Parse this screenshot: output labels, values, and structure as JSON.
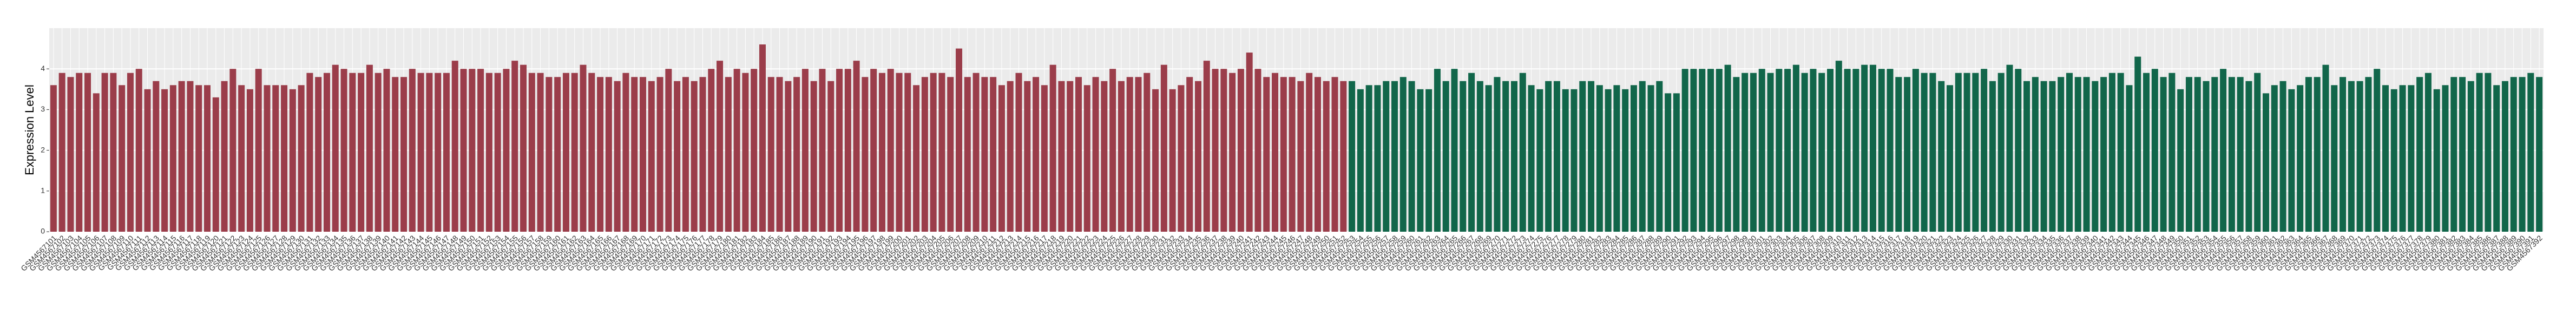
{
  "chart_data": {
    "type": "bar",
    "y_label": "Expression Level",
    "categories": [
      "GSM4567101",
      "GSM4567102",
      "GSM4567103",
      "GSM4567104",
      "GSM4567105",
      "GSM4567106",
      "GSM4567107",
      "GSM4567108",
      "GSM4567109",
      "GSM4567110",
      "GSM4567111",
      "GSM4567112",
      "GSM4567113",
      "GSM4567114",
      "GSM4567115",
      "GSM4567116",
      "GSM4567117",
      "GSM4567118",
      "GSM4567119",
      "GSM4567120",
      "GSM4567121",
      "GSM4567122",
      "GSM4567123",
      "GSM4567124",
      "GSM4567125",
      "GSM4567126",
      "GSM4567127",
      "GSM4567128",
      "GSM4567129",
      "GSM4567130",
      "GSM4567131",
      "GSM4567132",
      "GSM4567133",
      "GSM4567134",
      "GSM4567135",
      "GSM4567136",
      "GSM4567137",
      "GSM4567138",
      "GSM4567139",
      "GSM4567140",
      "GSM4567141",
      "GSM4567142",
      "GSM4567143",
      "GSM4567144",
      "GSM4567145",
      "GSM4567146",
      "GSM4567147",
      "GSM4567148",
      "GSM4567149",
      "GSM4567150",
      "GSM4567151",
      "GSM4567152",
      "GSM4567153",
      "GSM4567154",
      "GSM4567155",
      "GSM4567156",
      "GSM4567157",
      "GSM4567158",
      "GSM4567159",
      "GSM4567160",
      "GSM4567161",
      "GSM4567162",
      "GSM4567163",
      "GSM4567164",
      "GSM4567165",
      "GSM4567166",
      "GSM4567167",
      "GSM4567168",
      "GSM4567169",
      "GSM4567170",
      "GSM4567171",
      "GSM4567172",
      "GSM4567173",
      "GSM4567174",
      "GSM4567175",
      "GSM4567176",
      "GSM4567177",
      "GSM4567178",
      "GSM4567179",
      "GSM4567180",
      "GSM4567181",
      "GSM4567182",
      "GSM4567183",
      "GSM4567184",
      "GSM4567185",
      "GSM4567186",
      "GSM4567187",
      "GSM4567188",
      "GSM4567189",
      "GSM4567190",
      "GSM4567191",
      "GSM4567192",
      "GSM4567193",
      "GSM4567194",
      "GSM4567195",
      "GSM4567196",
      "GSM4567197",
      "GSM4567198",
      "GSM4567199",
      "GSM4567200",
      "GSM4567201",
      "GSM4567202",
      "GSM4567203",
      "GSM4567204",
      "GSM4567205",
      "GSM4567206",
      "GSM4567207",
      "GSM4567208",
      "GSM4567209",
      "GSM4567210",
      "GSM4567211",
      "GSM4567212",
      "GSM4567213",
      "GSM4567214",
      "GSM4567215",
      "GSM4567216",
      "GSM4567217",
      "GSM4567218",
      "GSM4567219",
      "GSM4567220",
      "GSM4567221",
      "GSM4567222",
      "GSM4567223",
      "GSM4567224",
      "GSM4567225",
      "GSM4567226",
      "GSM4567227",
      "GSM4567228",
      "GSM4567229",
      "GSM4567230",
      "GSM4567231",
      "GSM4567232",
      "GSM4567233",
      "GSM4567234",
      "GSM4567235",
      "GSM4567236",
      "GSM4567237",
      "GSM4567238",
      "GSM4567239",
      "GSM4567240",
      "GSM4567241",
      "GSM4567242",
      "GSM4567243",
      "GSM4567244",
      "GSM4567245",
      "GSM4567246",
      "GSM4567247",
      "GSM4567248",
      "GSM4567249",
      "GSM4567250",
      "GSM4567251",
      "GSM4567252",
      "GSM4567253",
      "GSM4567254",
      "GSM4567255",
      "GSM4567256",
      "GSM4567257",
      "GSM4567258",
      "GSM4567259",
      "GSM4567260",
      "GSM4567261",
      "GSM4567262",
      "GSM4567263",
      "GSM4567264",
      "GSM4567265",
      "GSM4567266",
      "GSM4567267",
      "GSM4567268",
      "GSM4567269",
      "GSM4567270",
      "GSM4567271",
      "GSM4567272",
      "GSM4567273",
      "GSM4567274",
      "GSM4567275",
      "GSM4567276",
      "GSM4567277",
      "GSM4567278",
      "GSM4567279",
      "GSM4567280",
      "GSM4567281",
      "GSM4567282",
      "GSM4567283",
      "GSM4567284",
      "GSM4567285",
      "GSM4567286",
      "GSM4567287",
      "GSM4567288",
      "GSM4567289",
      "GSM4567290",
      "GSM4567291",
      "GSM4567292",
      "GSM4567293",
      "GSM4567294",
      "GSM4567295",
      "GSM4567296",
      "GSM4567297",
      "GSM4567298",
      "GSM4567299",
      "GSM4567300",
      "GSM4567301",
      "GSM4567302",
      "GSM4567303",
      "GSM4567304",
      "GSM4567305",
      "GSM4567306",
      "GSM4567307",
      "GSM4567308",
      "GSM4567309",
      "GSM4567310",
      "GSM4567311",
      "GSM4567312",
      "GSM4567313",
      "GSM4567314",
      "GSM4567315",
      "GSM4567316",
      "GSM4567317",
      "GSM4567318",
      "GSM4567319",
      "GSM4567320",
      "GSM4567321",
      "GSM4567322",
      "GSM4567323",
      "GSM4567324",
      "GSM4567325",
      "GSM4567326",
      "GSM4567327",
      "GSM4567328",
      "GSM4567329",
      "GSM4567330",
      "GSM4567331",
      "GSM4567332",
      "GSM4567333",
      "GSM4567334",
      "GSM4567335",
      "GSM4567336",
      "GSM4567337",
      "GSM4567338",
      "GSM4567339",
      "GSM4567340",
      "GSM4567341",
      "GSM4567342",
      "GSM4567343",
      "GSM4567344",
      "GSM4567345",
      "GSM4567346",
      "GSM4567347",
      "GSM4567348",
      "GSM4567349",
      "GSM4567350",
      "GSM4567351",
      "GSM4567352",
      "GSM4567353",
      "GSM4567354",
      "GSM4567355",
      "GSM4567356",
      "GSM4567357",
      "GSM4567358",
      "GSM4567359",
      "GSM4567360",
      "GSM4567361",
      "GSM4567362",
      "GSM4567363",
      "GSM4567364",
      "GSM4567365",
      "GSM4567366",
      "GSM4567367",
      "GSM4567368",
      "GSM4567369",
      "GSM4567370",
      "GSM4567371",
      "GSM4567372",
      "GSM4567373",
      "GSM4567374",
      "GSM4567375",
      "GSM4567376",
      "GSM4567377",
      "GSM4567378",
      "GSM4567379",
      "GSM4567380",
      "GSM4567381",
      "GSM4567382",
      "GSM4567383",
      "GSM4567384",
      "GSM4567385",
      "GSM4567386",
      "GSM4567387",
      "GSM4567388",
      "GSM4567389",
      "GSM4567390",
      "GSM4567391",
      "GSM4567392"
    ],
    "values": [
      3.6,
      3.9,
      3.8,
      3.9,
      3.9,
      3.4,
      3.9,
      3.9,
      3.6,
      3.9,
      4.0,
      3.5,
      3.7,
      3.5,
      3.6,
      3.7,
      3.7,
      3.6,
      3.6,
      3.3,
      3.7,
      4.0,
      3.6,
      3.5,
      4.0,
      3.6,
      3.6,
      3.6,
      3.5,
      3.6,
      3.9,
      3.8,
      3.9,
      4.1,
      4.0,
      3.9,
      3.9,
      4.1,
      3.9,
      4.0,
      3.8,
      3.8,
      4.0,
      3.9,
      3.9,
      3.9,
      3.9,
      4.2,
      4.0,
      4.0,
      4.0,
      3.9,
      3.9,
      4.0,
      4.2,
      4.1,
      3.9,
      3.9,
      3.8,
      3.8,
      3.9,
      3.9,
      4.1,
      3.9,
      3.8,
      3.8,
      3.7,
      3.9,
      3.8,
      3.8,
      3.7,
      3.8,
      4.0,
      3.7,
      3.8,
      3.7,
      3.8,
      4.0,
      4.2,
      3.8,
      4.0,
      3.9,
      4.0,
      4.6,
      3.8,
      3.8,
      3.7,
      3.8,
      4.0,
      3.7,
      4.0,
      3.7,
      4.0,
      4.0,
      4.2,
      3.8,
      4.0,
      3.9,
      4.0,
      3.9,
      3.9,
      3.6,
      3.8,
      3.9,
      3.9,
      3.8,
      4.5,
      3.8,
      3.9,
      3.8,
      3.8,
      3.6,
      3.7,
      3.9,
      3.7,
      3.8,
      3.6,
      4.1,
      3.7,
      3.7,
      3.8,
      3.6,
      3.8,
      3.7,
      4.0,
      3.7,
      3.8,
      3.8,
      3.9,
      3.5,
      4.1,
      3.5,
      3.6,
      3.8,
      3.7,
      4.2,
      4.0,
      4.0,
      3.9,
      4.0,
      4.4,
      4.0,
      3.8,
      3.9,
      3.8,
      3.8,
      3.7,
      3.9,
      3.8,
      3.7,
      3.8,
      3.7,
      3.7,
      3.5,
      3.6,
      3.6,
      3.7,
      3.7,
      3.8,
      3.7,
      3.5,
      3.5,
      4.0,
      3.7,
      4.0,
      3.7,
      3.9,
      3.7,
      3.6,
      3.8,
      3.7,
      3.7,
      3.9,
      3.6,
      3.5,
      3.7,
      3.7,
      3.5,
      3.5,
      3.7,
      3.7,
      3.6,
      3.5,
      3.6,
      3.5,
      3.6,
      3.7,
      3.6,
      3.7,
      3.4,
      3.4,
      4.0,
      4.0,
      4.0,
      4.0,
      4.0,
      4.1,
      3.8,
      3.9,
      3.9,
      4.0,
      3.9,
      4.0,
      4.0,
      4.1,
      3.9,
      4.0,
      3.9,
      4.0,
      4.2,
      4.0,
      4.0,
      4.1,
      4.1,
      4.0,
      4.0,
      3.8,
      3.8,
      4.0,
      3.9,
      3.9,
      3.7,
      3.6,
      3.9,
      3.9,
      3.9,
      4.0,
      3.7,
      3.9,
      4.1,
      4.0,
      3.7,
      3.8,
      3.7,
      3.7,
      3.8,
      3.9,
      3.8,
      3.8,
      3.7,
      3.8,
      3.9,
      3.9,
      3.6,
      4.3,
      3.9,
      4.0,
      3.8,
      3.9,
      3.5,
      3.8,
      3.8,
      3.7,
      3.8,
      4.0,
      3.8,
      3.8,
      3.7,
      3.9,
      3.4,
      3.6,
      3.7,
      3.5,
      3.6,
      3.8,
      3.8,
      4.1,
      3.6,
      3.8,
      3.7,
      3.7,
      3.8,
      4.0,
      3.6,
      3.5,
      3.6,
      3.6,
      3.8,
      3.9,
      3.5,
      3.6,
      3.8,
      3.8,
      3.7,
      3.9,
      3.9,
      3.6,
      3.7,
      3.8,
      3.8,
      3.9,
      3.8
    ],
    "colors": [
      "#9b3d4a",
      "#9b3d4a",
      "#9b3d4a",
      "#9b3d4a",
      "#9b3d4a",
      "#9b3d4a",
      "#9b3d4a",
      "#9b3d4a",
      "#9b3d4a",
      "#9b3d4a",
      "#9b3d4a",
      "#9b3d4a",
      "#9b3d4a",
      "#9b3d4a",
      "#9b3d4a",
      "#9b3d4a",
      "#9b3d4a",
      "#9b3d4a",
      "#9b3d4a",
      "#9b3d4a",
      "#9b3d4a",
      "#9b3d4a",
      "#9b3d4a",
      "#9b3d4a",
      "#9b3d4a",
      "#9b3d4a",
      "#9b3d4a",
      "#9b3d4a",
      "#9b3d4a",
      "#9b3d4a",
      "#9b3d4a",
      "#9b3d4a",
      "#9b3d4a",
      "#9b3d4a",
      "#9b3d4a",
      "#9b3d4a",
      "#9b3d4a",
      "#9b3d4a",
      "#9b3d4a",
      "#9b3d4a",
      "#9b3d4a",
      "#9b3d4a",
      "#9b3d4a",
      "#9b3d4a",
      "#9b3d4a",
      "#9b3d4a",
      "#9b3d4a",
      "#9b3d4a",
      "#9b3d4a",
      "#9b3d4a",
      "#9b3d4a",
      "#9b3d4a",
      "#9b3d4a",
      "#9b3d4a",
      "#9b3d4a",
      "#9b3d4a",
      "#9b3d4a",
      "#9b3d4a",
      "#9b3d4a",
      "#9b3d4a",
      "#9b3d4a",
      "#9b3d4a",
      "#9b3d4a",
      "#9b3d4a",
      "#9b3d4a",
      "#9b3d4a",
      "#9b3d4a",
      "#9b3d4a",
      "#9b3d4a",
      "#9b3d4a",
      "#9b3d4a",
      "#9b3d4a",
      "#9b3d4a",
      "#9b3d4a",
      "#9b3d4a",
      "#9b3d4a",
      "#9b3d4a",
      "#9b3d4a",
      "#9b3d4a",
      "#9b3d4a",
      "#9b3d4a",
      "#9b3d4a",
      "#9b3d4a",
      "#9b3d4a",
      "#9b3d4a",
      "#9b3d4a",
      "#9b3d4a",
      "#9b3d4a",
      "#9b3d4a",
      "#9b3d4a",
      "#9b3d4a",
      "#9b3d4a",
      "#9b3d4a",
      "#9b3d4a",
      "#9b3d4a",
      "#9b3d4a",
      "#9b3d4a",
      "#9b3d4a",
      "#9b3d4a",
      "#9b3d4a",
      "#9b3d4a",
      "#9b3d4a",
      "#9b3d4a",
      "#9b3d4a",
      "#9b3d4a",
      "#9b3d4a",
      "#9b3d4a",
      "#9b3d4a",
      "#9b3d4a",
      "#9b3d4a",
      "#9b3d4a",
      "#9b3d4a",
      "#9b3d4a",
      "#9b3d4a",
      "#9b3d4a",
      "#9b3d4a",
      "#9b3d4a",
      "#9b3d4a",
      "#9b3d4a",
      "#9b3d4a",
      "#9b3d4a",
      "#9b3d4a",
      "#9b3d4a",
      "#9b3d4a",
      "#9b3d4a",
      "#9b3d4a",
      "#9b3d4a",
      "#9b3d4a",
      "#9b3d4a",
      "#9b3d4a",
      "#9b3d4a",
      "#9b3d4a",
      "#9b3d4a",
      "#9b3d4a",
      "#9b3d4a",
      "#9b3d4a",
      "#9b3d4a",
      "#9b3d4a",
      "#9b3d4a",
      "#9b3d4a",
      "#9b3d4a",
      "#9b3d4a",
      "#9b3d4a",
      "#9b3d4a",
      "#9b3d4a",
      "#9b3d4a",
      "#9b3d4a",
      "#9b3d4a",
      "#9b3d4a",
      "#9b3d4a",
      "#9b3d4a",
      "#9b3d4a",
      "#11664a",
      "#11664a",
      "#11664a",
      "#11664a",
      "#11664a",
      "#11664a",
      "#11664a",
      "#11664a",
      "#11664a",
      "#11664a",
      "#11664a",
      "#11664a",
      "#11664a",
      "#11664a",
      "#11664a",
      "#11664a",
      "#11664a",
      "#11664a",
      "#11664a",
      "#11664a",
      "#11664a",
      "#11664a",
      "#11664a",
      "#11664a",
      "#11664a",
      "#11664a",
      "#11664a",
      "#11664a",
      "#11664a",
      "#11664a",
      "#11664a",
      "#11664a",
      "#11664a",
      "#11664a",
      "#11664a",
      "#11664a",
      "#11664a",
      "#11664a",
      "#11664a",
      "#11664a",
      "#11664a",
      "#11664a",
      "#11664a",
      "#11664a",
      "#11664a",
      "#11664a",
      "#11664a",
      "#11664a",
      "#11664a",
      "#11664a",
      "#11664a",
      "#11664a",
      "#11664a",
      "#11664a",
      "#11664a",
      "#11664a",
      "#11664a",
      "#11664a",
      "#11664a",
      "#11664a",
      "#11664a",
      "#11664a",
      "#11664a",
      "#11664a",
      "#11664a",
      "#11664a",
      "#11664a",
      "#11664a",
      "#11664a",
      "#11664a",
      "#11664a",
      "#11664a",
      "#11664a",
      "#11664a",
      "#11664a",
      "#11664a",
      "#11664a",
      "#11664a",
      "#11664a",
      "#11664a",
      "#11664a",
      "#11664a",
      "#11664a",
      "#11664a",
      "#11664a",
      "#11664a",
      "#11664a",
      "#11664a",
      "#11664a",
      "#11664a",
      "#11664a",
      "#11664a",
      "#11664a",
      "#11664a",
      "#11664a",
      "#11664a",
      "#11664a",
      "#11664a",
      "#11664a",
      "#11664a",
      "#11664a",
      "#11664a",
      "#11664a",
      "#11664a",
      "#11664a",
      "#11664a",
      "#11664a",
      "#11664a",
      "#11664a",
      "#11664a",
      "#11664a",
      "#11664a",
      "#11664a",
      "#11664a",
      "#11664a",
      "#11664a",
      "#11664a",
      "#11664a",
      "#11664a",
      "#11664a",
      "#11664a",
      "#11664a",
      "#11664a",
      "#11664a",
      "#11664a",
      "#11664a",
      "#11664a",
      "#11664a",
      "#11664a",
      "#11664a",
      "#11664a",
      "#11664a",
      "#11664a",
      "#11664a",
      "#11664a",
      "#11664a",
      "#11664a",
      "#11664a",
      "#11664a",
      "#11664a"
    ],
    "ylim": [
      0,
      5
    ],
    "yticks": [
      0,
      1,
      2,
      3,
      4
    ],
    "grid": true
  }
}
